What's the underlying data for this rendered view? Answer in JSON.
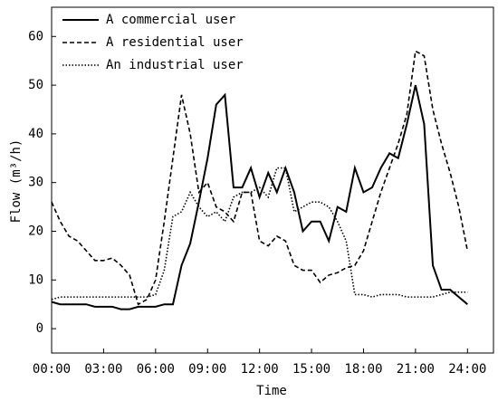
{
  "chart_data": {
    "type": "line",
    "x_label": "Time",
    "y_label": "Flow (m³/h)",
    "x": [
      0,
      0.5,
      1,
      1.5,
      2,
      2.5,
      3,
      3.5,
      4,
      4.5,
      5,
      5.5,
      6,
      6.5,
      7,
      7.5,
      8,
      8.5,
      9,
      9.5,
      10,
      10.5,
      11,
      11.5,
      12,
      12.5,
      13,
      13.5,
      14,
      14.5,
      15,
      15.5,
      16,
      16.5,
      17,
      17.5,
      18,
      18.5,
      19,
      19.5,
      20,
      20.5,
      21,
      21.5,
      22,
      22.5,
      23,
      23.5,
      24
    ],
    "series": [
      {
        "name": "A commercial user",
        "color": "#000000",
        "dash": "solid",
        "values": [
          5.5,
          5,
          5,
          5,
          5,
          4.5,
          4.5,
          4.5,
          4,
          4,
          4.5,
          4.5,
          4.5,
          5,
          5,
          13,
          17.5,
          26,
          35,
          46,
          48,
          29,
          29,
          33,
          27,
          32,
          28,
          33,
          28,
          20,
          22,
          22,
          18,
          25,
          24,
          33,
          28,
          29,
          33,
          36,
          35,
          42,
          50,
          42,
          13,
          8,
          8,
          6.5,
          5
        ]
      },
      {
        "name": "A residential user",
        "color": "#000000",
        "dash": "dashed",
        "values": [
          26,
          22,
          19,
          18,
          16,
          14,
          14,
          14.5,
          13,
          11,
          5,
          6,
          10,
          22,
          35,
          48,
          40,
          28,
          30,
          25,
          24,
          22,
          28,
          28,
          18,
          17,
          19,
          18,
          13,
          12,
          12,
          9.5,
          11,
          11.5,
          12.5,
          13,
          16,
          22,
          28,
          33,
          38,
          44,
          57,
          56,
          45,
          38,
          32,
          25,
          16
        ]
      },
      {
        "name": "An industrial user",
        "color": "#000000",
        "dash": "dotted",
        "values": [
          6,
          6.5,
          6.5,
          6.5,
          6.5,
          6.5,
          6.5,
          6.5,
          6.5,
          6.5,
          6.5,
          6.5,
          7,
          12,
          23,
          24,
          28,
          25,
          23,
          24,
          22,
          27,
          28,
          28,
          29,
          27,
          33,
          33,
          24,
          25,
          26,
          26,
          25,
          22,
          18,
          7,
          7,
          6.5,
          7,
          7,
          7,
          6.5,
          6.5,
          6.5,
          6.5,
          7,
          7.5,
          7.5,
          7.5
        ]
      }
    ],
    "xlim": [
      0,
      25.5
    ],
    "xticks": [
      {
        "value": 0,
        "label": "00:00"
      },
      {
        "value": 3,
        "label": "03:00"
      },
      {
        "value": 6,
        "label": "06:00"
      },
      {
        "value": 9,
        "label": "09:00"
      },
      {
        "value": 12,
        "label": "12:00"
      },
      {
        "value": 15,
        "label": "15:00"
      },
      {
        "value": 18,
        "label": "18:00"
      },
      {
        "value": 21,
        "label": "21:00"
      },
      {
        "value": 24,
        "label": "24:00"
      }
    ],
    "ylim": [
      -5,
      66
    ],
    "yticks": [
      0,
      10,
      20,
      30,
      40,
      50,
      60
    ],
    "grid": false,
    "legend": "upper-left"
  }
}
